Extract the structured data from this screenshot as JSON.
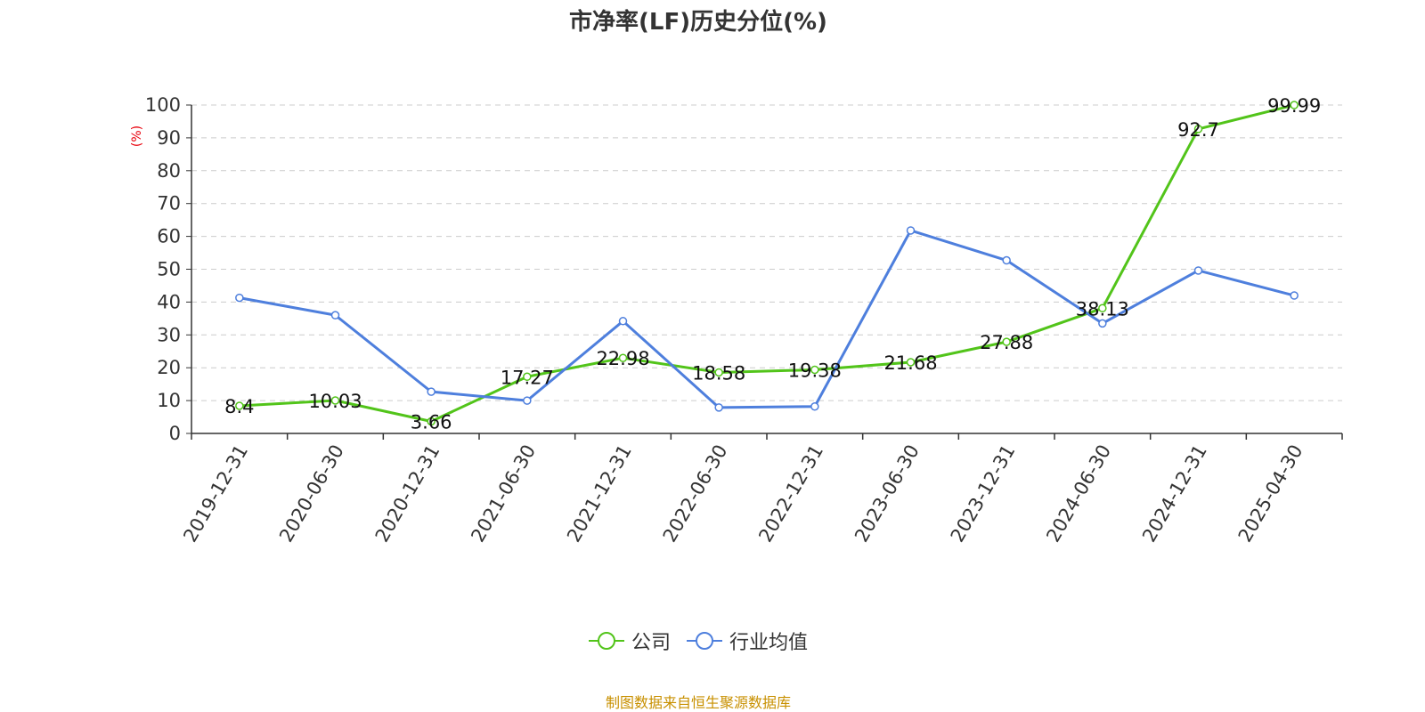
{
  "title": "市净率(LF)历史分位(%)",
  "source_note": "制图数据来自恒生聚源数据库",
  "colors": {
    "company": "#52c41a",
    "industry": "#4e7fdd",
    "ylabel": "#e8000b",
    "source": "#c89000",
    "axis": "#333333",
    "grid": "#cccccc"
  },
  "chart_data": {
    "type": "line",
    "title": "市净率(LF)历史分位(%)",
    "xlabel": "",
    "ylabel": "(%)",
    "ylim": [
      0,
      100
    ],
    "yticks": [
      0,
      10,
      20,
      30,
      40,
      50,
      60,
      70,
      80,
      90,
      100
    ],
    "grid": true,
    "legend_position": "bottom",
    "categories": [
      "2019-12-31",
      "2020-06-30",
      "2020-12-31",
      "2021-06-30",
      "2021-12-31",
      "2022-06-30",
      "2022-12-31",
      "2023-06-30",
      "2023-12-31",
      "2024-06-30",
      "2024-12-31",
      "2025-04-30"
    ],
    "series": [
      {
        "name": "公司",
        "values": [
          8.4,
          10.03,
          3.66,
          17.27,
          22.98,
          18.58,
          19.38,
          21.68,
          27.88,
          38.13,
          92.7,
          99.99
        ],
        "labels": [
          "8.4",
          "10.03",
          "3.66",
          "17.27",
          "22.98",
          "18.58",
          "19.38",
          "21.68",
          "27.88",
          "38.13",
          "92.7",
          "99.99"
        ]
      },
      {
        "name": "行业均值",
        "values": [
          41.3,
          36.0,
          12.7,
          10.0,
          34.2,
          7.9,
          8.2,
          61.8,
          52.7,
          33.5,
          49.6,
          42.0
        ]
      }
    ]
  }
}
